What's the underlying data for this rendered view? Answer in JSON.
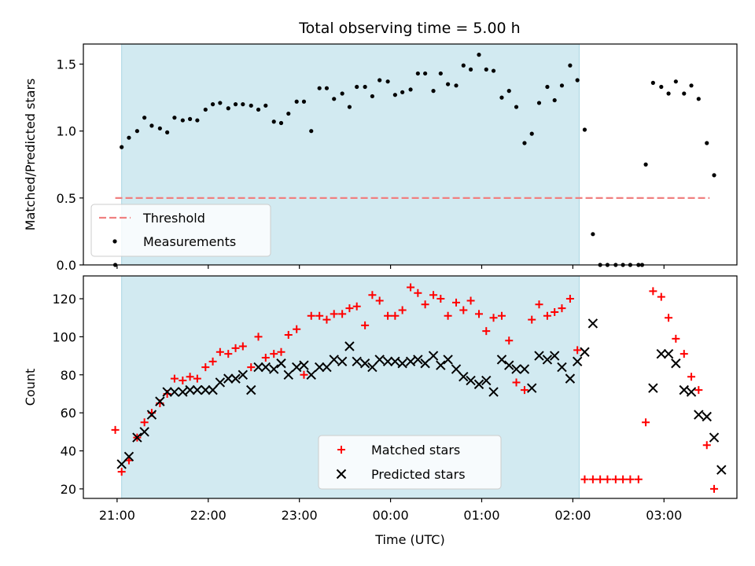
{
  "title": "Total observing time = 5.00 h",
  "chart_data": [
    {
      "type": "scatter",
      "panel": "top",
      "ylabel": "Matched/Predicted stars",
      "xlabel": "",
      "ylim": [
        0,
        1.65
      ],
      "yticks": [
        "0.0",
        "0.5",
        "1.0",
        "1.5"
      ],
      "ytick_values": [
        0.0,
        0.5,
        1.0,
        1.5
      ],
      "xticks": [
        "21:00",
        "22:00",
        "23:00",
        "00:00",
        "01:00",
        "02:00",
        "03:00"
      ],
      "xtick_values": [
        0,
        1,
        2,
        3,
        4,
        5,
        6
      ],
      "xlim": [
        -0.37,
        6.8
      ],
      "shaded_span": [
        0.05,
        5.07
      ],
      "threshold": {
        "name": "Threshold",
        "value": 0.5,
        "x_range": [
          -0.02,
          6.5
        ],
        "color": "#f08080"
      },
      "legend": {
        "position": "lower-left",
        "entries": [
          "Threshold",
          "Measurements"
        ]
      },
      "series": [
        {
          "name": "Measurements",
          "color": "#000000",
          "points": [
            [
              -0.02,
              0.0
            ],
            [
              0.05,
              0.88
            ],
            [
              0.13,
              0.95
            ],
            [
              0.22,
              1.0
            ],
            [
              0.3,
              1.1
            ],
            [
              0.38,
              1.04
            ],
            [
              0.47,
              1.02
            ],
            [
              0.55,
              0.99
            ],
            [
              0.63,
              1.1
            ],
            [
              0.72,
              1.08
            ],
            [
              0.8,
              1.09
            ],
            [
              0.88,
              1.08
            ],
            [
              0.97,
              1.16
            ],
            [
              1.05,
              1.2
            ],
            [
              1.13,
              1.21
            ],
            [
              1.22,
              1.17
            ],
            [
              1.3,
              1.2
            ],
            [
              1.38,
              1.2
            ],
            [
              1.47,
              1.19
            ],
            [
              1.55,
              1.16
            ],
            [
              1.63,
              1.19
            ],
            [
              1.72,
              1.07
            ],
            [
              1.8,
              1.06
            ],
            [
              1.88,
              1.13
            ],
            [
              1.97,
              1.22
            ],
            [
              2.05,
              1.22
            ],
            [
              2.13,
              1.0
            ],
            [
              2.22,
              1.32
            ],
            [
              2.3,
              1.32
            ],
            [
              2.38,
              1.24
            ],
            [
              2.47,
              1.28
            ],
            [
              2.55,
              1.18
            ],
            [
              2.63,
              1.33
            ],
            [
              2.72,
              1.33
            ],
            [
              2.8,
              1.26
            ],
            [
              2.88,
              1.38
            ],
            [
              2.97,
              1.37
            ],
            [
              3.05,
              1.27
            ],
            [
              3.13,
              1.29
            ],
            [
              3.22,
              1.31
            ],
            [
              3.3,
              1.43
            ],
            [
              3.38,
              1.43
            ],
            [
              3.47,
              1.3
            ],
            [
              3.55,
              1.43
            ],
            [
              3.63,
              1.35
            ],
            [
              3.72,
              1.34
            ],
            [
              3.8,
              1.49
            ],
            [
              3.88,
              1.46
            ],
            [
              3.97,
              1.57
            ],
            [
              4.05,
              1.46
            ],
            [
              4.13,
              1.45
            ],
            [
              4.22,
              1.25
            ],
            [
              4.3,
              1.3
            ],
            [
              4.38,
              1.18
            ],
            [
              4.47,
              0.91
            ],
            [
              4.55,
              0.98
            ],
            [
              4.63,
              1.21
            ],
            [
              4.72,
              1.33
            ],
            [
              4.8,
              1.23
            ],
            [
              4.88,
              1.34
            ],
            [
              4.97,
              1.49
            ],
            [
              5.05,
              1.38
            ],
            [
              5.13,
              1.01
            ],
            [
              5.22,
              0.23
            ],
            [
              5.3,
              0.0
            ],
            [
              5.38,
              0.0
            ],
            [
              5.47,
              0.0
            ],
            [
              5.55,
              0.0
            ],
            [
              5.63,
              0.0
            ],
            [
              5.72,
              0.0
            ],
            [
              5.76,
              0.0
            ],
            [
              5.8,
              0.75
            ],
            [
              5.88,
              1.36
            ],
            [
              5.97,
              1.33
            ],
            [
              6.05,
              1.28
            ],
            [
              6.13,
              1.37
            ],
            [
              6.22,
              1.28
            ],
            [
              6.3,
              1.34
            ],
            [
              6.38,
              1.24
            ],
            [
              6.47,
              0.91
            ],
            [
              6.55,
              0.67
            ]
          ]
        }
      ]
    },
    {
      "type": "scatter",
      "panel": "bottom",
      "ylabel": "Count",
      "xlabel": "Time (UTC)",
      "ylim": [
        15,
        132
      ],
      "yticks": [
        "20",
        "40",
        "60",
        "80",
        "100",
        "120"
      ],
      "ytick_values": [
        20,
        40,
        60,
        80,
        100,
        120
      ],
      "xticks": [
        "21:00",
        "22:00",
        "23:00",
        "00:00",
        "01:00",
        "02:00",
        "03:00"
      ],
      "xtick_values": [
        0,
        1,
        2,
        3,
        4,
        5,
        6
      ],
      "xlim": [
        -0.37,
        6.8
      ],
      "shaded_span": [
        0.05,
        5.07
      ],
      "legend": {
        "position": "lower-center",
        "entries": [
          "Matched stars",
          "Predicted stars"
        ]
      },
      "series": [
        {
          "name": "Matched stars",
          "marker": "plus",
          "color": "#ff0000",
          "points": [
            [
              -0.02,
              51
            ],
            [
              0.05,
              29
            ],
            [
              0.13,
              35
            ],
            [
              0.22,
              47
            ],
            [
              0.3,
              55
            ],
            [
              0.38,
              60
            ],
            [
              0.47,
              65
            ],
            [
              0.55,
              70
            ],
            [
              0.63,
              78
            ],
            [
              0.72,
              77
            ],
            [
              0.8,
              79
            ],
            [
              0.88,
              78
            ],
            [
              0.97,
              84
            ],
            [
              1.05,
              87
            ],
            [
              1.13,
              92
            ],
            [
              1.22,
              91
            ],
            [
              1.3,
              94
            ],
            [
              1.38,
              95
            ],
            [
              1.47,
              84
            ],
            [
              1.55,
              100
            ],
            [
              1.63,
              89
            ],
            [
              1.72,
              91
            ],
            [
              1.8,
              92
            ],
            [
              1.88,
              101
            ],
            [
              1.97,
              104
            ],
            [
              2.05,
              80
            ],
            [
              2.13,
              111
            ],
            [
              2.22,
              111
            ],
            [
              2.3,
              109
            ],
            [
              2.38,
              112
            ],
            [
              2.47,
              112
            ],
            [
              2.55,
              115
            ],
            [
              2.63,
              116
            ],
            [
              2.72,
              106
            ],
            [
              2.8,
              122
            ],
            [
              2.88,
              119
            ],
            [
              2.97,
              111
            ],
            [
              3.05,
              111
            ],
            [
              3.13,
              114
            ],
            [
              3.22,
              126
            ],
            [
              3.3,
              123
            ],
            [
              3.38,
              117
            ],
            [
              3.47,
              122
            ],
            [
              3.55,
              120
            ],
            [
              3.63,
              111
            ],
            [
              3.72,
              118
            ],
            [
              3.8,
              114
            ],
            [
              3.88,
              119
            ],
            [
              3.97,
              112
            ],
            [
              4.05,
              103
            ],
            [
              4.13,
              110
            ],
            [
              4.22,
              111
            ],
            [
              4.3,
              98
            ],
            [
              4.38,
              76
            ],
            [
              4.47,
              72
            ],
            [
              4.55,
              109
            ],
            [
              4.63,
              117
            ],
            [
              4.72,
              111
            ],
            [
              4.8,
              113
            ],
            [
              4.88,
              115
            ],
            [
              4.97,
              120
            ],
            [
              5.05,
              93
            ],
            [
              5.13,
              25
            ],
            [
              5.22,
              25
            ],
            [
              5.3,
              25
            ],
            [
              5.38,
              25
            ],
            [
              5.47,
              25
            ],
            [
              5.55,
              25
            ],
            [
              5.63,
              25
            ],
            [
              5.72,
              25
            ],
            [
              5.8,
              55
            ],
            [
              5.88,
              124
            ],
            [
              5.97,
              121
            ],
            [
              6.05,
              110
            ],
            [
              6.13,
              99
            ],
            [
              6.22,
              91
            ],
            [
              6.3,
              79
            ],
            [
              6.38,
              72
            ],
            [
              6.47,
              43
            ],
            [
              6.55,
              20
            ]
          ]
        },
        {
          "name": "Predicted stars",
          "marker": "x",
          "color": "#000000",
          "points": [
            [
              0.05,
              33
            ],
            [
              0.13,
              37
            ],
            [
              0.22,
              47
            ],
            [
              0.3,
              50
            ],
            [
              0.38,
              59
            ],
            [
              0.47,
              66
            ],
            [
              0.55,
              71
            ],
            [
              0.63,
              71
            ],
            [
              0.72,
              71
            ],
            [
              0.8,
              72
            ],
            [
              0.88,
              72
            ],
            [
              0.97,
              72
            ],
            [
              1.05,
              72
            ],
            [
              1.13,
              76
            ],
            [
              1.22,
              78
            ],
            [
              1.3,
              78
            ],
            [
              1.38,
              80
            ],
            [
              1.47,
              72
            ],
            [
              1.55,
              84
            ],
            [
              1.63,
              84
            ],
            [
              1.72,
              83
            ],
            [
              1.8,
              86
            ],
            [
              1.88,
              80
            ],
            [
              1.97,
              84
            ],
            [
              2.05,
              85
            ],
            [
              2.13,
              80
            ],
            [
              2.22,
              84
            ],
            [
              2.3,
              84
            ],
            [
              2.38,
              88
            ],
            [
              2.47,
              87
            ],
            [
              2.55,
              95
            ],
            [
              2.63,
              87
            ],
            [
              2.72,
              86
            ],
            [
              2.8,
              84
            ],
            [
              2.88,
              88
            ],
            [
              2.97,
              87
            ],
            [
              3.05,
              87
            ],
            [
              3.13,
              86
            ],
            [
              3.22,
              87
            ],
            [
              3.3,
              88
            ],
            [
              3.38,
              86
            ],
            [
              3.47,
              90
            ],
            [
              3.55,
              85
            ],
            [
              3.63,
              88
            ],
            [
              3.72,
              83
            ],
            [
              3.8,
              79
            ],
            [
              3.88,
              77
            ],
            [
              3.97,
              75
            ],
            [
              4.05,
              77
            ],
            [
              4.13,
              71
            ],
            [
              4.22,
              88
            ],
            [
              4.3,
              85
            ],
            [
              4.38,
              83
            ],
            [
              4.47,
              83
            ],
            [
              4.55,
              73
            ],
            [
              4.63,
              90
            ],
            [
              4.72,
              88
            ],
            [
              4.8,
              90
            ],
            [
              4.88,
              84
            ],
            [
              4.97,
              78
            ],
            [
              5.05,
              87
            ],
            [
              5.13,
              92
            ],
            [
              5.22,
              107
            ],
            [
              5.88,
              73
            ],
            [
              5.97,
              91
            ],
            [
              6.05,
              91
            ],
            [
              6.13,
              86
            ],
            [
              6.22,
              72
            ],
            [
              6.3,
              71
            ],
            [
              6.38,
              59
            ],
            [
              6.47,
              58
            ],
            [
              6.55,
              47
            ],
            [
              6.63,
              30
            ]
          ]
        }
      ]
    }
  ]
}
